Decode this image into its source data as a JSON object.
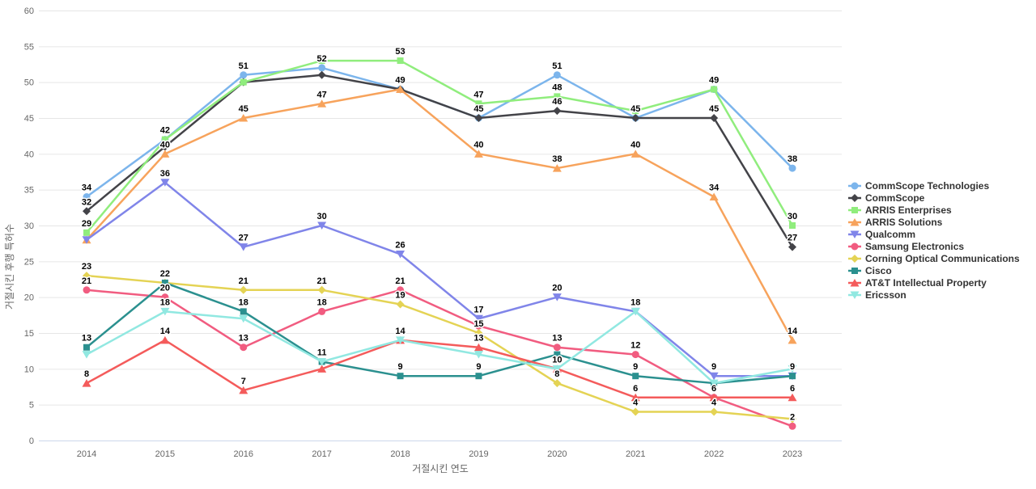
{
  "chart_data": {
    "type": "line",
    "title": "",
    "xlabel": "거절시킨 연도",
    "ylabel": "거절시킨 후행 특허수",
    "categories": [
      "2014",
      "2015",
      "2016",
      "2017",
      "2018",
      "2019",
      "2020",
      "2021",
      "2022",
      "2023"
    ],
    "y_axis": {
      "min": 0,
      "max": 60,
      "tick_interval": 5,
      "ticks": [
        0,
        5,
        10,
        15,
        20,
        25,
        30,
        35,
        40,
        45,
        50,
        55,
        60
      ]
    },
    "grid": "horizontal",
    "legend_position": "right",
    "axis_line_color": "#ccd6eb",
    "grid_color": "#e6e6e6",
    "series": [
      {
        "name": "CommScope Technologies",
        "color": "#7cb5ec",
        "marker": "circle",
        "values": [
          34,
          42,
          51,
          52,
          49,
          45,
          51,
          45,
          49,
          38
        ]
      },
      {
        "name": "CommScope",
        "color": "#434348",
        "marker": "diamond",
        "values": [
          32,
          41,
          50,
          51,
          49,
          45,
          46,
          45,
          45,
          27
        ]
      },
      {
        "name": "ARRIS Enterprises",
        "color": "#90ed7d",
        "marker": "square",
        "values": [
          29,
          42,
          50,
          53,
          53,
          47,
          48,
          46,
          49,
          30
        ]
      },
      {
        "name": "ARRIS Solutions",
        "color": "#f7a35c",
        "marker": "triangle",
        "values": [
          28,
          40,
          45,
          47,
          49,
          40,
          38,
          40,
          34,
          14
        ]
      },
      {
        "name": "Qualcomm",
        "color": "#8085e9",
        "marker": "triangle-down",
        "values": [
          28,
          36,
          27,
          30,
          26,
          17,
          20,
          18,
          9,
          9
        ]
      },
      {
        "name": "Samsung Electronics",
        "color": "#f15c80",
        "marker": "circle",
        "values": [
          21,
          20,
          13,
          18,
          21,
          16,
          13,
          12,
          6,
          2
        ]
      },
      {
        "name": "Corning Optical Communications",
        "color": "#e4d354",
        "marker": "diamond",
        "values": [
          23,
          22,
          21,
          21,
          19,
          15,
          8,
          4,
          4,
          3
        ]
      },
      {
        "name": "Cisco",
        "color": "#2b908f",
        "marker": "square",
        "values": [
          13,
          22,
          18,
          11,
          9,
          9,
          12,
          9,
          8,
          9
        ]
      },
      {
        "name": "AT&T Intellectual Property",
        "color": "#f45b5b",
        "marker": "triangle",
        "values": [
          8,
          14,
          7,
          10,
          14,
          13,
          10,
          6,
          6,
          6
        ]
      },
      {
        "name": "Ericsson",
        "color": "#91e8e1",
        "marker": "triangle-down",
        "values": [
          12,
          18,
          17,
          11,
          14,
          12,
          10,
          18,
          8,
          10
        ]
      }
    ]
  }
}
